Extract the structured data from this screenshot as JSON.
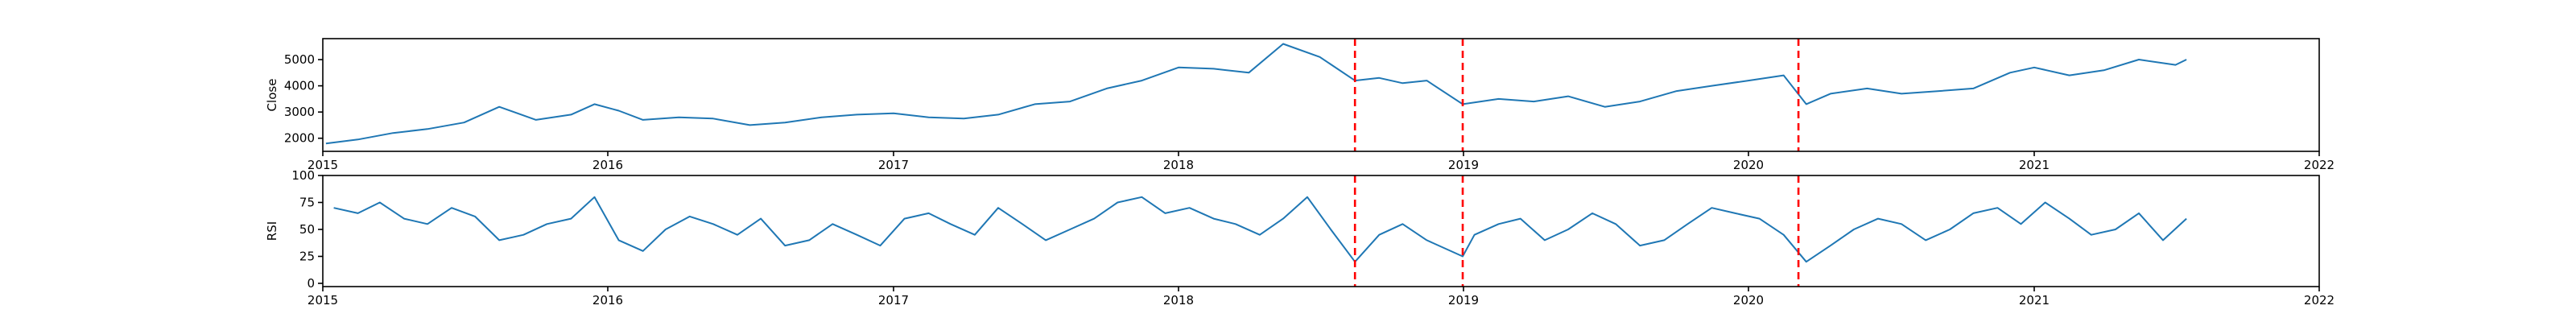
{
  "chart_data": [
    {
      "type": "line",
      "xlabel": "",
      "ylabel": "Close",
      "xlim": [
        "2015-01-01",
        "2022-01-01"
      ],
      "ylim": [
        1500,
        5800
      ],
      "x_ticks": [
        "2015-01-01",
        "2016-01-01",
        "2017-01-01",
        "2018-01-01",
        "2019-01-01",
        "2020-01-01",
        "2021-01-01",
        "2022-01-01"
      ],
      "x_tick_labels": [
        "2015",
        "2016",
        "2017",
        "2018",
        "2019",
        "2020",
        "2021",
        "2022"
      ],
      "y_ticks": [
        2000,
        3000,
        4000,
        5000
      ],
      "y_tick_labels": [
        "2000",
        "3000",
        "4000",
        "5000"
      ],
      "grid": false,
      "line_color": "#1f77b4",
      "vlines": {
        "x": [
          "2018-08-15",
          "2018-12-31",
          "2020-03-05"
        ],
        "color": "#ff0000",
        "style": "dashed"
      },
      "series": [
        {
          "x": [
            "2015-01-05",
            "2015-02-15",
            "2015-04-01",
            "2015-05-15",
            "2015-07-01",
            "2015-08-15",
            "2015-10-01",
            "2015-11-15",
            "2015-12-15",
            "2016-01-15",
            "2016-02-15",
            "2016-04-01",
            "2016-05-15",
            "2016-07-01",
            "2016-08-15",
            "2016-10-01",
            "2016-11-15",
            "2017-01-01",
            "2017-02-15",
            "2017-04-01",
            "2017-05-15",
            "2017-07-01",
            "2017-08-15",
            "2017-10-01",
            "2017-11-15",
            "2018-01-01",
            "2018-02-15",
            "2018-04-01",
            "2018-05-15",
            "2018-07-01",
            "2018-08-15",
            "2018-09-15",
            "2018-10-15",
            "2018-11-15",
            "2018-12-31",
            "2019-02-15",
            "2019-04-01",
            "2019-05-15",
            "2019-07-01",
            "2019-08-15",
            "2019-10-01",
            "2019-11-15",
            "2020-01-01",
            "2020-02-15",
            "2020-03-15",
            "2020-04-15",
            "2020-06-01",
            "2020-07-15",
            "2020-09-01",
            "2020-10-15",
            "2020-12-01",
            "2021-01-01",
            "2021-02-15",
            "2021-04-01",
            "2021-05-15",
            "2021-07-01",
            "2021-07-15"
          ],
          "y": [
            1800,
            1950,
            2200,
            2350,
            2600,
            3200,
            2700,
            2900,
            3300,
            3050,
            2700,
            2800,
            2750,
            2500,
            2600,
            2800,
            2900,
            2950,
            2800,
            2750,
            2900,
            3300,
            3400,
            3900,
            4200,
            4700,
            4650,
            4500,
            5600,
            5100,
            4200,
            4300,
            4100,
            4200,
            3300,
            3500,
            3400,
            3600,
            3200,
            3400,
            3800,
            4000,
            4200,
            4400,
            3300,
            3700,
            3900,
            3700,
            3800,
            3900,
            4500,
            4700,
            4400,
            4600,
            5000,
            4800,
            5000
          ]
        }
      ]
    },
    {
      "type": "line",
      "xlabel": "",
      "ylabel": "RSI",
      "xlim": [
        "2015-01-01",
        "2022-01-01"
      ],
      "ylim": [
        -3,
        100
      ],
      "x_ticks": [
        "2015-01-01",
        "2016-01-01",
        "2017-01-01",
        "2018-01-01",
        "2019-01-01",
        "2020-01-01",
        "2021-01-01",
        "2022-01-01"
      ],
      "x_tick_labels": [
        "2015",
        "2016",
        "2017",
        "2018",
        "2019",
        "2020",
        "2021",
        "2022"
      ],
      "y_ticks": [
        0,
        25,
        50,
        75,
        100
      ],
      "y_tick_labels": [
        "0",
        "25",
        "50",
        "75",
        "100"
      ],
      "grid": false,
      "line_color": "#1f77b4",
      "vlines": {
        "x": [
          "2018-08-15",
          "2018-12-31",
          "2020-03-05"
        ],
        "color": "#ff0000",
        "style": "dashed"
      },
      "series": [
        {
          "x": [
            "2015-01-15",
            "2015-02-15",
            "2015-03-15",
            "2015-04-15",
            "2015-05-15",
            "2015-06-15",
            "2015-07-15",
            "2015-08-15",
            "2015-09-15",
            "2015-10-15",
            "2015-11-15",
            "2015-12-15",
            "2016-01-15",
            "2016-02-15",
            "2016-03-15",
            "2016-04-15",
            "2016-05-15",
            "2016-06-15",
            "2016-07-15",
            "2016-08-15",
            "2016-09-15",
            "2016-10-15",
            "2016-11-15",
            "2016-12-15",
            "2017-01-15",
            "2017-02-15",
            "2017-03-15",
            "2017-04-15",
            "2017-05-15",
            "2017-06-15",
            "2017-07-15",
            "2017-08-15",
            "2017-09-15",
            "2017-10-15",
            "2017-11-15",
            "2017-12-15",
            "2018-01-15",
            "2018-02-15",
            "2018-03-15",
            "2018-04-15",
            "2018-05-15",
            "2018-06-15",
            "2018-07-15",
            "2018-08-15",
            "2018-09-15",
            "2018-10-15",
            "2018-11-15",
            "2018-12-31",
            "2019-01-15",
            "2019-02-15",
            "2019-03-15",
            "2019-04-15",
            "2019-05-15",
            "2019-06-15",
            "2019-07-15",
            "2019-08-15",
            "2019-09-15",
            "2019-10-15",
            "2019-11-15",
            "2019-12-15",
            "2020-01-15",
            "2020-02-15",
            "2020-03-15",
            "2020-04-15",
            "2020-05-15",
            "2020-06-15",
            "2020-07-15",
            "2020-08-15",
            "2020-09-15",
            "2020-10-15",
            "2020-11-15",
            "2020-12-15",
            "2021-01-15",
            "2021-02-15",
            "2021-03-15",
            "2021-04-15",
            "2021-05-15",
            "2021-06-15",
            "2021-07-15"
          ],
          "y": [
            70,
            65,
            75,
            60,
            55,
            70,
            62,
            40,
            45,
            55,
            60,
            80,
            40,
            30,
            50,
            62,
            55,
            45,
            60,
            35,
            40,
            55,
            45,
            35,
            60,
            65,
            55,
            45,
            70,
            55,
            40,
            50,
            60,
            75,
            80,
            65,
            70,
            60,
            55,
            45,
            60,
            80,
            50,
            20,
            45,
            55,
            40,
            25,
            45,
            55,
            60,
            40,
            50,
            65,
            55,
            35,
            40,
            55,
            70,
            65,
            60,
            45,
            20,
            35,
            50,
            60,
            55,
            40,
            50,
            65,
            70,
            55,
            75,
            60,
            45,
            50,
            65,
            40,
            60
          ]
        }
      ]
    }
  ]
}
